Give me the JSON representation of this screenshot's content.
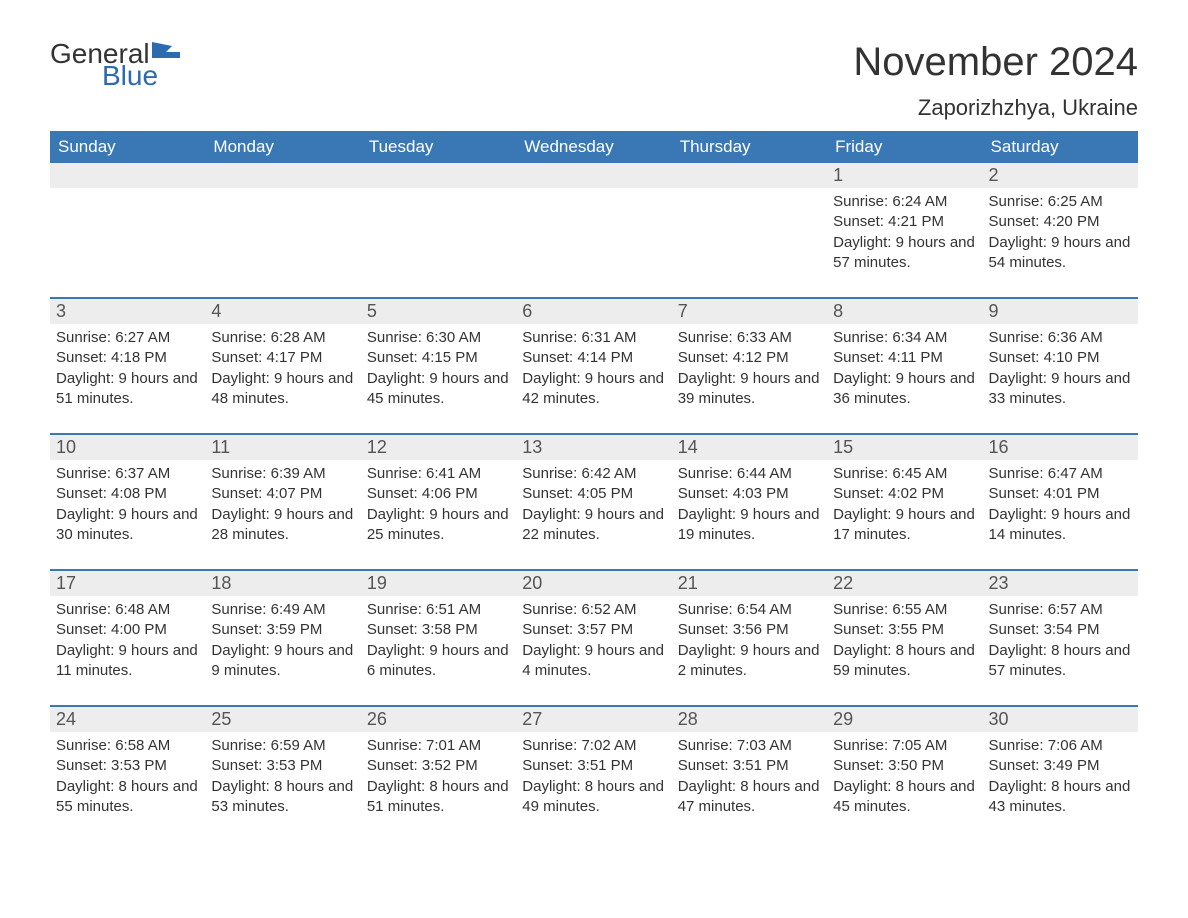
{
  "logo": {
    "general": "General",
    "blue": "Blue"
  },
  "title": "November 2024",
  "subtitle": "Zaporizhzhya, Ukraine",
  "colors": {
    "header_bg": "#3a78b5",
    "daynum_bg": "#ededed",
    "text": "#333333",
    "logo_blue": "#2b6cb0",
    "border": "#3a78b5"
  },
  "dow": [
    "Sunday",
    "Monday",
    "Tuesday",
    "Wednesday",
    "Thursday",
    "Friday",
    "Saturday"
  ],
  "weeks": [
    [
      null,
      null,
      null,
      null,
      null,
      {
        "n": "1",
        "sr": "6:24 AM",
        "ss": "4:21 PM",
        "dl": "9 hours and 57 minutes."
      },
      {
        "n": "2",
        "sr": "6:25 AM",
        "ss": "4:20 PM",
        "dl": "9 hours and 54 minutes."
      }
    ],
    [
      {
        "n": "3",
        "sr": "6:27 AM",
        "ss": "4:18 PM",
        "dl": "9 hours and 51 minutes."
      },
      {
        "n": "4",
        "sr": "6:28 AM",
        "ss": "4:17 PM",
        "dl": "9 hours and 48 minutes."
      },
      {
        "n": "5",
        "sr": "6:30 AM",
        "ss": "4:15 PM",
        "dl": "9 hours and 45 minutes."
      },
      {
        "n": "6",
        "sr": "6:31 AM",
        "ss": "4:14 PM",
        "dl": "9 hours and 42 minutes."
      },
      {
        "n": "7",
        "sr": "6:33 AM",
        "ss": "4:12 PM",
        "dl": "9 hours and 39 minutes."
      },
      {
        "n": "8",
        "sr": "6:34 AM",
        "ss": "4:11 PM",
        "dl": "9 hours and 36 minutes."
      },
      {
        "n": "9",
        "sr": "6:36 AM",
        "ss": "4:10 PM",
        "dl": "9 hours and 33 minutes."
      }
    ],
    [
      {
        "n": "10",
        "sr": "6:37 AM",
        "ss": "4:08 PM",
        "dl": "9 hours and 30 minutes."
      },
      {
        "n": "11",
        "sr": "6:39 AM",
        "ss": "4:07 PM",
        "dl": "9 hours and 28 minutes."
      },
      {
        "n": "12",
        "sr": "6:41 AM",
        "ss": "4:06 PM",
        "dl": "9 hours and 25 minutes."
      },
      {
        "n": "13",
        "sr": "6:42 AM",
        "ss": "4:05 PM",
        "dl": "9 hours and 22 minutes."
      },
      {
        "n": "14",
        "sr": "6:44 AM",
        "ss": "4:03 PM",
        "dl": "9 hours and 19 minutes."
      },
      {
        "n": "15",
        "sr": "6:45 AM",
        "ss": "4:02 PM",
        "dl": "9 hours and 17 minutes."
      },
      {
        "n": "16",
        "sr": "6:47 AM",
        "ss": "4:01 PM",
        "dl": "9 hours and 14 minutes."
      }
    ],
    [
      {
        "n": "17",
        "sr": "6:48 AM",
        "ss": "4:00 PM",
        "dl": "9 hours and 11 minutes."
      },
      {
        "n": "18",
        "sr": "6:49 AM",
        "ss": "3:59 PM",
        "dl": "9 hours and 9 minutes."
      },
      {
        "n": "19",
        "sr": "6:51 AM",
        "ss": "3:58 PM",
        "dl": "9 hours and 6 minutes."
      },
      {
        "n": "20",
        "sr": "6:52 AM",
        "ss": "3:57 PM",
        "dl": "9 hours and 4 minutes."
      },
      {
        "n": "21",
        "sr": "6:54 AM",
        "ss": "3:56 PM",
        "dl": "9 hours and 2 minutes."
      },
      {
        "n": "22",
        "sr": "6:55 AM",
        "ss": "3:55 PM",
        "dl": "8 hours and 59 minutes."
      },
      {
        "n": "23",
        "sr": "6:57 AM",
        "ss": "3:54 PM",
        "dl": "8 hours and 57 minutes."
      }
    ],
    [
      {
        "n": "24",
        "sr": "6:58 AM",
        "ss": "3:53 PM",
        "dl": "8 hours and 55 minutes."
      },
      {
        "n": "25",
        "sr": "6:59 AM",
        "ss": "3:53 PM",
        "dl": "8 hours and 53 minutes."
      },
      {
        "n": "26",
        "sr": "7:01 AM",
        "ss": "3:52 PM",
        "dl": "8 hours and 51 minutes."
      },
      {
        "n": "27",
        "sr": "7:02 AM",
        "ss": "3:51 PM",
        "dl": "8 hours and 49 minutes."
      },
      {
        "n": "28",
        "sr": "7:03 AM",
        "ss": "3:51 PM",
        "dl": "8 hours and 47 minutes."
      },
      {
        "n": "29",
        "sr": "7:05 AM",
        "ss": "3:50 PM",
        "dl": "8 hours and 45 minutes."
      },
      {
        "n": "30",
        "sr": "7:06 AM",
        "ss": "3:49 PM",
        "dl": "8 hours and 43 minutes."
      }
    ]
  ],
  "labels": {
    "sunrise": "Sunrise: ",
    "sunset": "Sunset: ",
    "daylight": "Daylight: "
  }
}
